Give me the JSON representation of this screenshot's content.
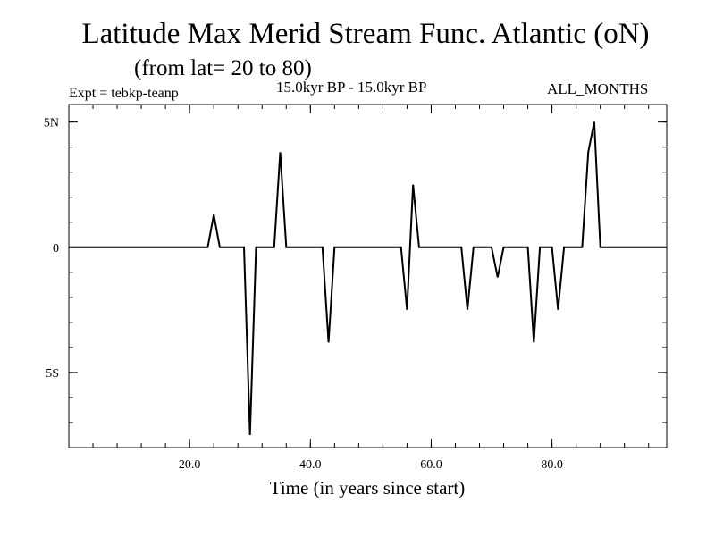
{
  "header": {
    "title": "Latitude Max Merid Stream Func. Atlantic (oN)",
    "subtitle": "(from lat= 20 to 80)",
    "expt": "Expt = tebkp-teanp",
    "period": "15.0kyr BP - 15.0kyr BP",
    "months": "ALL_MONTHS"
  },
  "chart_data": {
    "type": "line",
    "title": "Latitude Max Merid Stream Func. Atlantic (oN)",
    "subtitle": "(from lat= 20 to 80)",
    "xlabel": "Time (in years since start)",
    "ylabel": "",
    "xlim": [
      0,
      99
    ],
    "ylim": [
      -8,
      5.7
    ],
    "x_ticks": [
      {
        "value": 20,
        "label": "20.0"
      },
      {
        "value": 40,
        "label": "40.0"
      },
      {
        "value": 60,
        "label": "60.0"
      },
      {
        "value": 80,
        "label": "80.0"
      }
    ],
    "y_ticks": [
      {
        "value": 5,
        "label": "5N"
      },
      {
        "value": 0,
        "label": "0"
      },
      {
        "value": -5,
        "label": "5S"
      }
    ],
    "x_minor_step": 4,
    "y_minor_step": 1,
    "grid": false,
    "line_color": "#000000",
    "series": [
      {
        "x": [
          0,
          23,
          24,
          25,
          29,
          30,
          31,
          34,
          35,
          36,
          42,
          43,
          44,
          49,
          55,
          56,
          57,
          58,
          65,
          66,
          67,
          70,
          71,
          72,
          76,
          77,
          78,
          80,
          81,
          82,
          85,
          86,
          87,
          88,
          99
        ],
        "y": [
          0,
          0,
          1.3,
          0,
          0,
          -7.5,
          0,
          0,
          3.8,
          0,
          0,
          -3.8,
          0,
          0,
          0,
          -2.5,
          2.5,
          0,
          0,
          -2.5,
          0,
          0,
          -1.2,
          0,
          0,
          -3.8,
          0,
          0,
          -2.5,
          0,
          0,
          3.8,
          5,
          0,
          0
        ]
      }
    ]
  }
}
